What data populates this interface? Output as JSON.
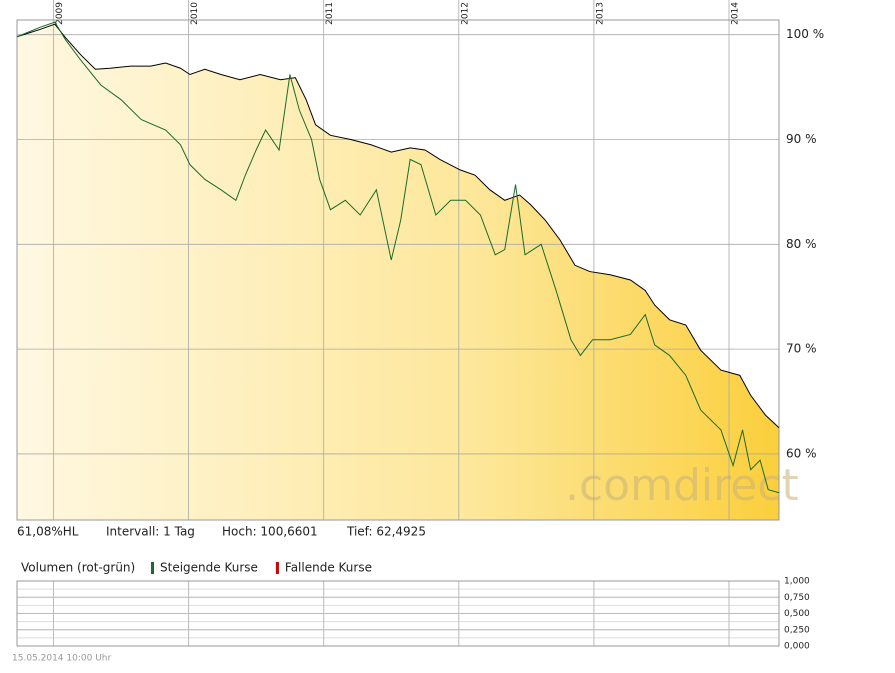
{
  "chart_data": {
    "type": "line",
    "info": [
      "61,08%HL",
      "Intervall: 1 Tag",
      "Hoch: 100,6601",
      "Tief: 62,4925"
    ],
    "watermark": ".comdirect",
    "xlim": [
      2008.73,
      2014.37
    ],
    "xticks": [
      2009,
      2010,
      2011,
      2012,
      2013,
      2014
    ],
    "ylim": [
      53.7,
      101.4
    ],
    "yticks": [
      {
        "value": 60,
        "label": "60 %"
      },
      {
        "value": 70,
        "label": "70 %"
      },
      {
        "value": 80,
        "label": "80 %"
      },
      {
        "value": 90,
        "label": "90 %"
      },
      {
        "value": 100,
        "label": "100 %"
      }
    ],
    "grid": true,
    "series": [
      {
        "color": "#000000",
        "fill": true,
        "x": [
          2008.73,
          2008.9,
          2009.01,
          2009.09,
          2009.2,
          2009.31,
          2009.42,
          2009.57,
          2009.72,
          2009.83,
          2009.94,
          2010.01,
          2010.12,
          2010.24,
          2010.38,
          2010.53,
          2010.68,
          2010.79,
          2010.87,
          2010.94,
          2011.05,
          2011.2,
          2011.35,
          2011.5,
          2011.64,
          2011.75,
          2011.86,
          2012.01,
          2012.12,
          2012.23,
          2012.34,
          2012.45,
          2012.53,
          2012.64,
          2012.75,
          2012.86,
          2012.97,
          2013.12,
          2013.27,
          2013.38,
          2013.45,
          2013.56,
          2013.68,
          2013.79,
          2013.94,
          2014.08,
          2014.16,
          2014.27,
          2014.37
        ],
        "values": [
          99.8,
          100.5,
          101,
          99.7,
          98.1,
          96.7,
          96.8,
          97,
          97,
          97.3,
          96.8,
          96.2,
          96.7,
          96.2,
          95.7,
          96.2,
          95.7,
          95.9,
          93.8,
          91.4,
          90.4,
          90,
          89.5,
          88.8,
          89.2,
          89,
          88.1,
          87.1,
          86.6,
          85.2,
          84.2,
          84.7,
          83.8,
          82.3,
          80.4,
          78,
          77.4,
          77.1,
          76.6,
          75.6,
          74.2,
          72.8,
          72.3,
          69.9,
          68,
          67.5,
          65.6,
          63.7,
          62.5
        ]
      },
      {
        "color": "#1a6b2a",
        "fill": false,
        "x": [
          2008.73,
          2008.9,
          2009.01,
          2009.09,
          2009.2,
          2009.35,
          2009.5,
          2009.65,
          2009.83,
          2009.94,
          2010.01,
          2010.12,
          2010.24,
          2010.35,
          2010.42,
          2010.5,
          2010.57,
          2010.67,
          2010.75,
          2010.82,
          2010.91,
          2010.97,
          2011.05,
          2011.16,
          2011.27,
          2011.39,
          2011.5,
          2011.57,
          2011.64,
          2011.72,
          2011.83,
          2011.94,
          2012.05,
          2012.16,
          2012.27,
          2012.34,
          2012.42,
          2012.49,
          2012.61,
          2012.72,
          2012.83,
          2012.9,
          2012.99,
          2013.12,
          2013.27,
          2013.38,
          2013.45,
          2013.56,
          2013.68,
          2013.79,
          2013.94,
          2014.03,
          2014.1,
          2014.16,
          2014.23,
          2014.29,
          2014.37
        ],
        "values": [
          99.8,
          100.7,
          101.2,
          99.5,
          97.6,
          95.2,
          93.8,
          91.9,
          90.9,
          89.5,
          87.6,
          86.2,
          85.2,
          84.2,
          86.6,
          89,
          90.9,
          89,
          96.2,
          92.8,
          90,
          86.2,
          83.3,
          84.2,
          82.8,
          85.2,
          78.5,
          82.3,
          88.1,
          87.6,
          82.8,
          84.2,
          84.2,
          82.8,
          79,
          79.5,
          85.7,
          79,
          80,
          75.6,
          70.9,
          69.4,
          70.9,
          70.9,
          71.4,
          73.3,
          70.4,
          69.4,
          67.5,
          64.2,
          62.3,
          58.9,
          62.3,
          58.5,
          59.4,
          56.6,
          56.3
        ]
      }
    ],
    "volume": {
      "title": "Volumen (rot-grün)",
      "legend": [
        {
          "name": "Steigende Kurse",
          "color": "#1a6b2a"
        },
        {
          "name": "Fallende Kurse",
          "color": "#cc0000"
        }
      ],
      "ylim": [
        0,
        1
      ],
      "yticks": [
        {
          "value": 0,
          "label": "0,000"
        },
        {
          "value": 0.25,
          "label": "0,250"
        },
        {
          "value": 0.5,
          "label": "0,500"
        },
        {
          "value": 0.75,
          "label": "0,750"
        },
        {
          "value": 1,
          "label": "1,000"
        }
      ]
    },
    "footer": "15.05.2014 10:00 Uhr"
  }
}
